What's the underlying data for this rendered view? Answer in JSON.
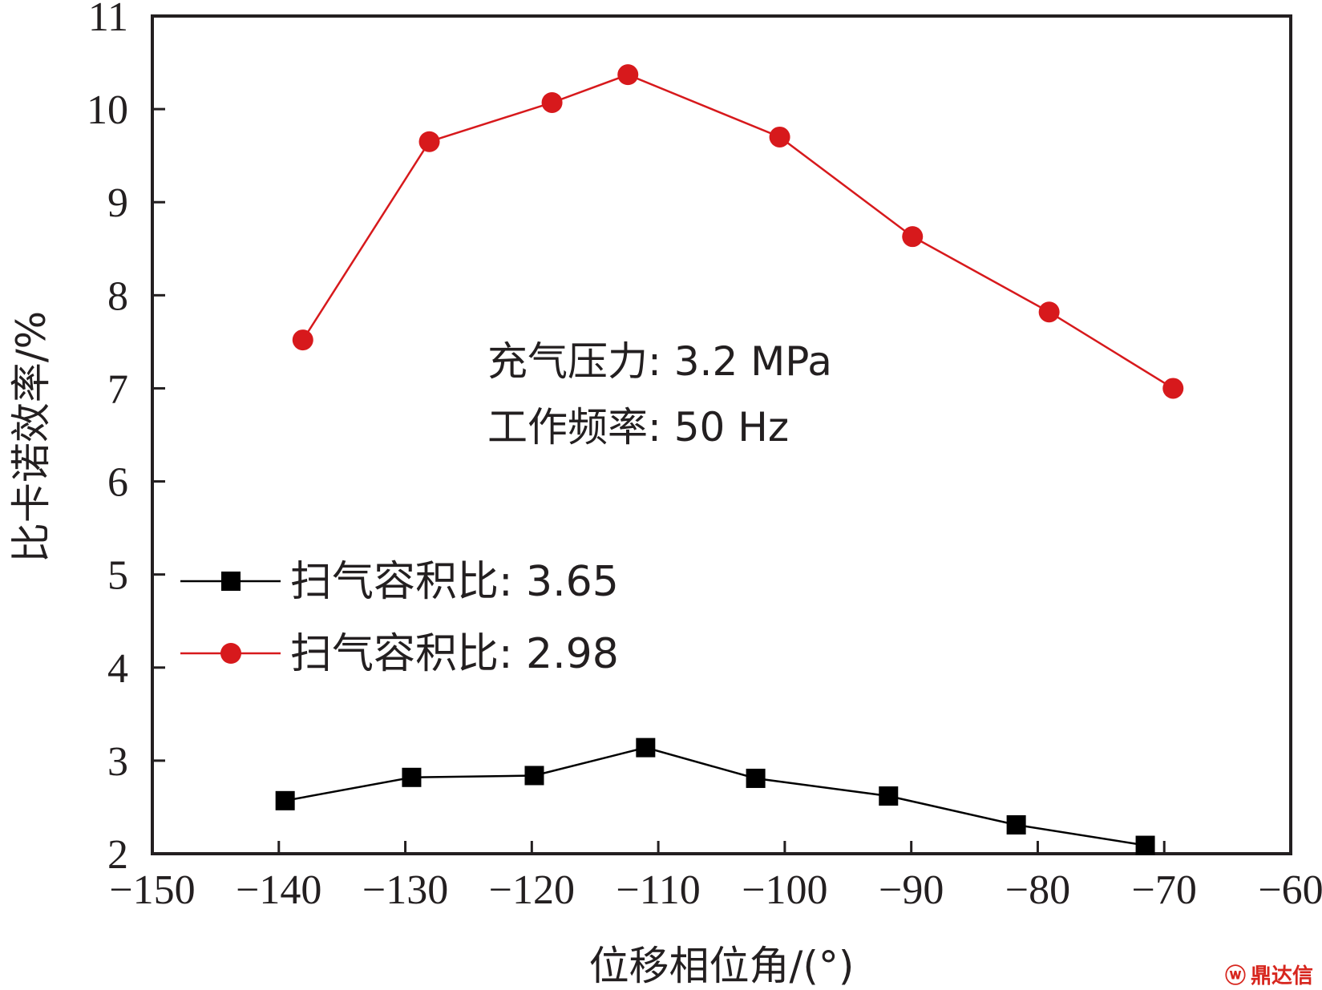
{
  "chart_data": {
    "type": "line",
    "xlabel": "位移相位角/(°)",
    "ylabel": "比卡诺效率/%",
    "xlim": [
      -150,
      -60
    ],
    "ylim": [
      2,
      11
    ],
    "xticks": [
      "−150",
      "−140",
      "−130",
      "−120",
      "−110",
      "−100",
      "−90",
      "−80",
      "−70",
      "−60"
    ],
    "yticks": [
      "2",
      "3",
      "4",
      "5",
      "6",
      "7",
      "8",
      "9",
      "10",
      "11"
    ],
    "annotations": [
      "充气压力: 3.2 MPa",
      "工作频率: 50 Hz"
    ],
    "legend_position": "middle-left",
    "grid": false,
    "series": [
      {
        "name": "扫气容积比: 3.65",
        "marker": "square",
        "color": "#000000",
        "x": [
          -139.5,
          -129.5,
          -119.8,
          -111.0,
          -102.3,
          -91.8,
          -81.7,
          -71.5
        ],
        "y": [
          2.57,
          2.82,
          2.84,
          3.14,
          2.81,
          2.62,
          2.31,
          2.09
        ]
      },
      {
        "name": "扫气容积比: 2.98",
        "marker": "circle",
        "color": "#d7191c",
        "x": [
          -138.1,
          -128.1,
          -118.4,
          -112.4,
          -100.4,
          -89.9,
          -79.1,
          -69.3
        ],
        "y": [
          7.52,
          9.65,
          10.07,
          10.37,
          9.7,
          8.63,
          7.82,
          7.0
        ]
      }
    ]
  },
  "watermark": {
    "glyph": "ⓦ",
    "text": "鼎达信"
  }
}
